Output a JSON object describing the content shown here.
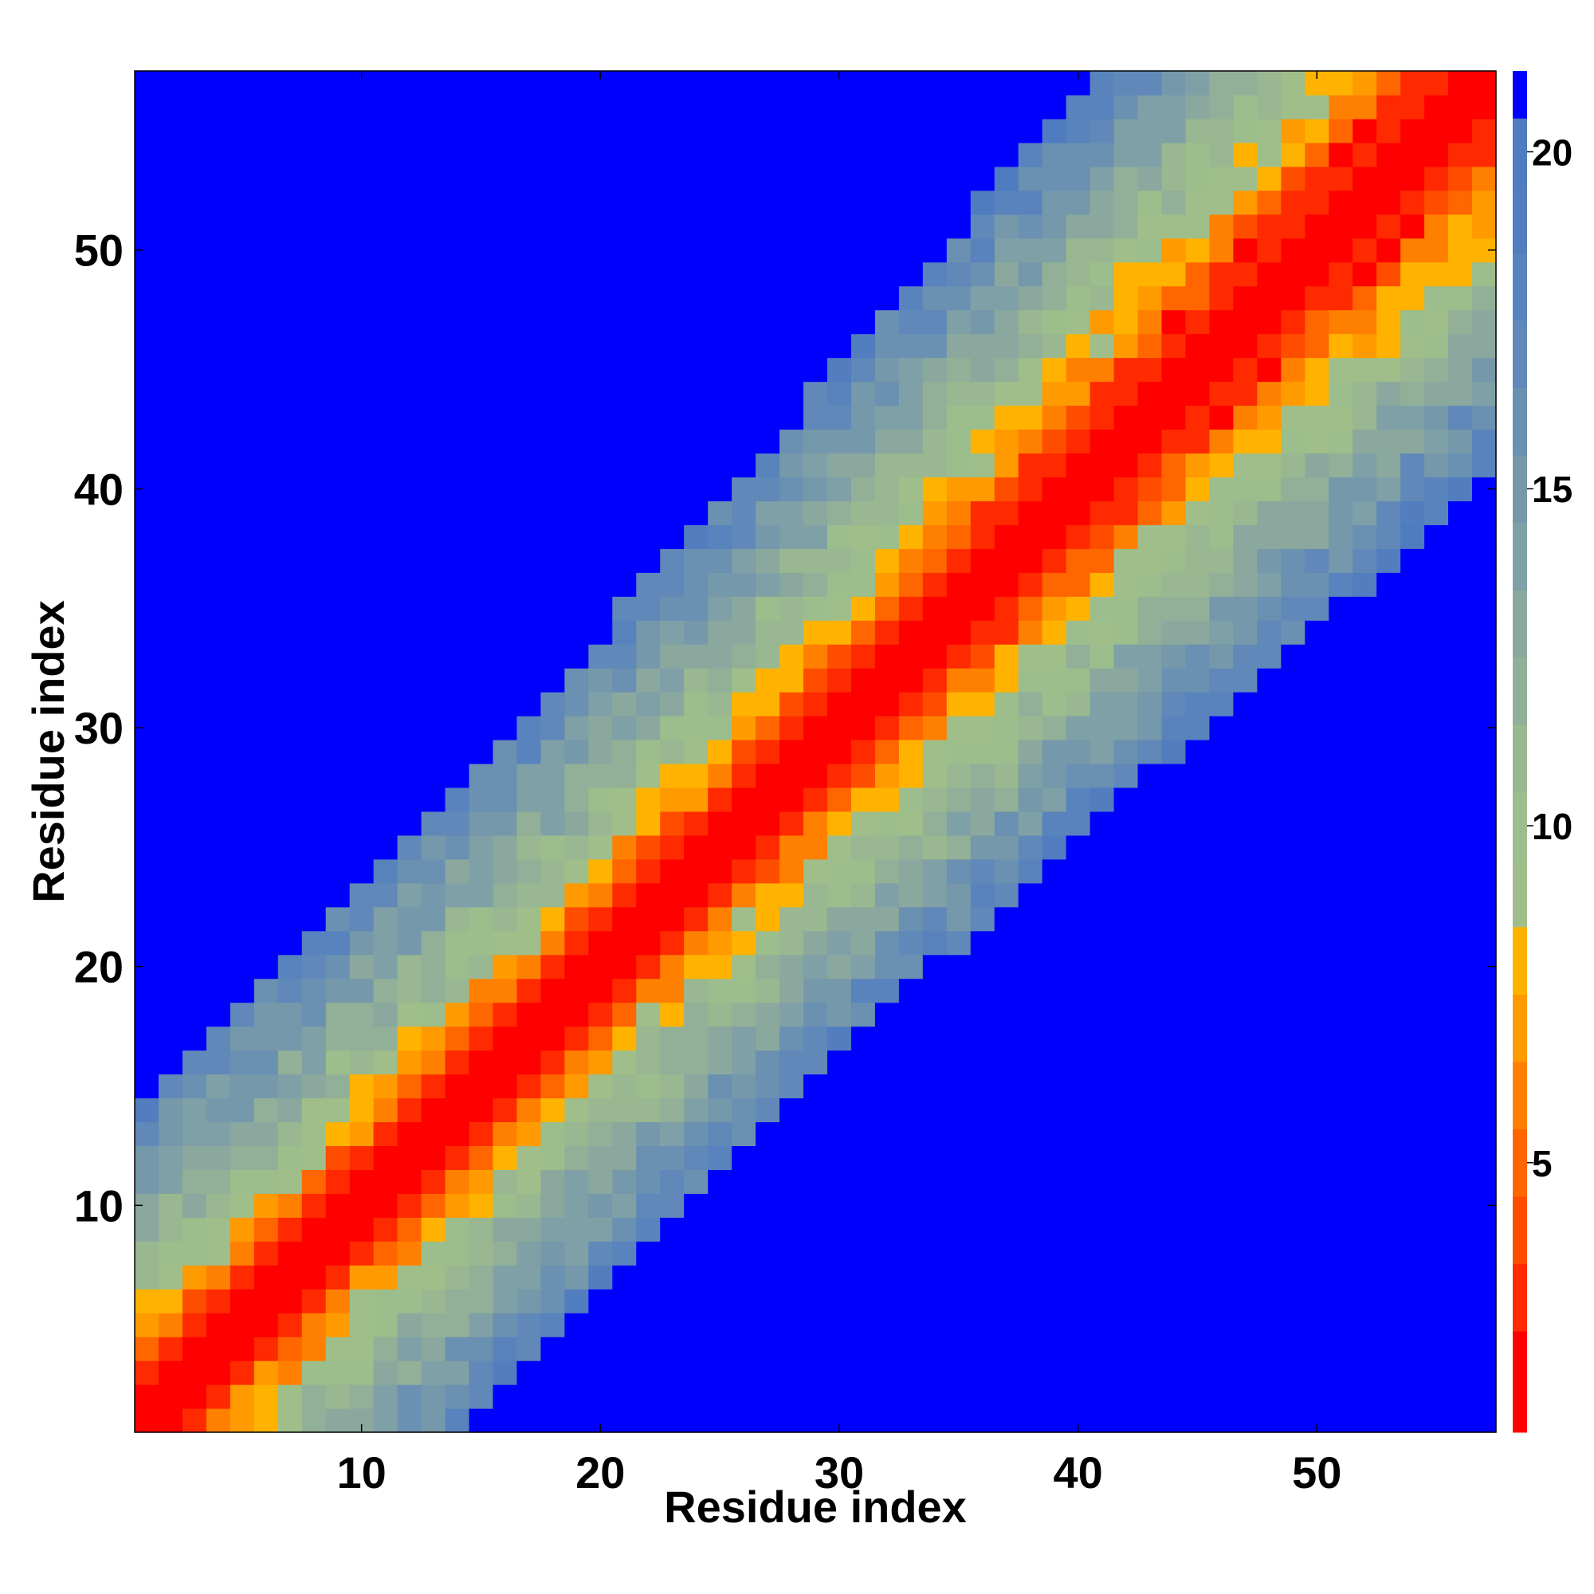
{
  "chart_data": {
    "type": "heatmap",
    "title": "",
    "xlabel": "Residue index",
    "ylabel": "Residue index",
    "n_residues": 57,
    "xlim": [
      0.5,
      57.5
    ],
    "ylim": [
      0.5,
      57.5
    ],
    "x_ticks": [
      10,
      20,
      30,
      40,
      50
    ],
    "y_ticks": [
      10,
      20,
      30,
      40,
      50
    ],
    "color_scale": {
      "min": 1,
      "max": 21.2,
      "ticks": [
        5,
        10,
        15,
        20
      ],
      "placement": "right",
      "colors": [
        {
          "max": 2.5,
          "color": "#ff0000"
        },
        {
          "max": 3.5,
          "color": "#ff2a00"
        },
        {
          "max": 4.5,
          "color": "#ff4d00"
        },
        {
          "max": 5.5,
          "color": "#ff6600"
        },
        {
          "max": 6.5,
          "color": "#ff8000"
        },
        {
          "max": 7.5,
          "color": "#ff9a00"
        },
        {
          "max": 8.5,
          "color": "#ffb300"
        },
        {
          "max": 9.5,
          "color": "#9fbe8a"
        },
        {
          "max": 10.5,
          "color": "#9cbd8c"
        },
        {
          "max": 11.5,
          "color": "#99b790"
        },
        {
          "max": 12.5,
          "color": "#92b097"
        },
        {
          "max": 13.5,
          "color": "#8aa89e"
        },
        {
          "max": 14.5,
          "color": "#7fa0a6"
        },
        {
          "max": 15.5,
          "color": "#7598ab"
        },
        {
          "max": 16.5,
          "color": "#6a90b2"
        },
        {
          "max": 17.5,
          "color": "#6088b8"
        },
        {
          "max": 18.5,
          "color": "#5983bc"
        },
        {
          "max": 19.5,
          "color": "#527dbf"
        },
        {
          "max": 20.5,
          "color": "#4f7bc0"
        },
        {
          "max": 99,
          "color": "#0000ff"
        }
      ]
    },
    "profile": {
      "description_of_encoding": "",
      "distance_by_separation": [
        1.0,
        2.0,
        3.5,
        5.5,
        7.5,
        9.5,
        10.5,
        11.5,
        12.5,
        13.5,
        14.5,
        15.5,
        16.5,
        17.5,
        18.5,
        19.5
      ],
      "default_value": 21
    },
    "values_note": ""
  }
}
